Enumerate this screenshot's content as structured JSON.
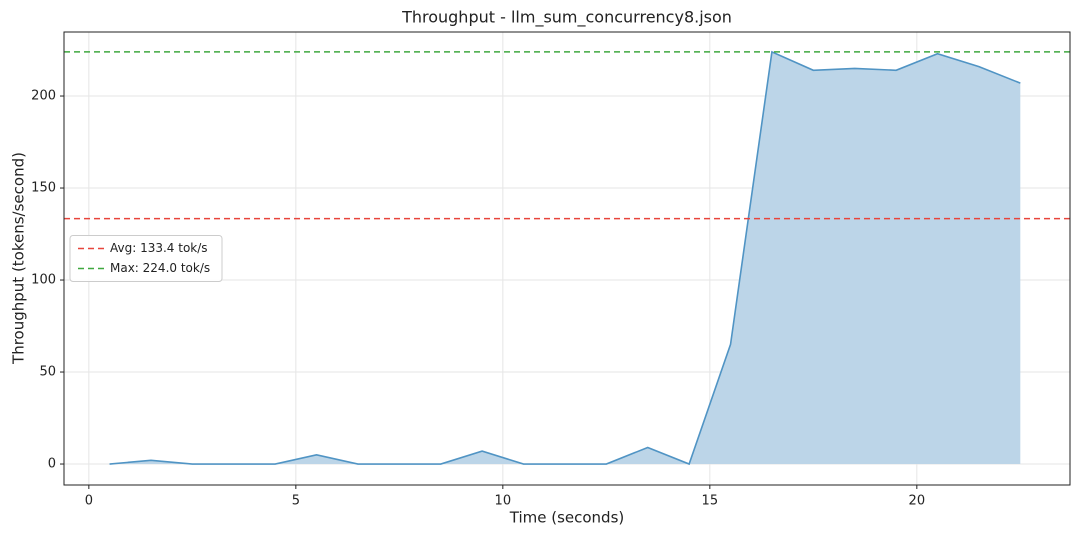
{
  "chart_data": {
    "type": "area",
    "title": "Throughput - llm_sum_concurrency8.json",
    "x_label": "Time (seconds)",
    "y_label": "Throughput (tokens/second)",
    "x": [
      0.5,
      1.5,
      2.5,
      3.5,
      4.5,
      5.5,
      6.5,
      7.5,
      8.5,
      9.5,
      10.5,
      11.5,
      12.5,
      13.5,
      14.5,
      15.5,
      16.5,
      17.5,
      18.5,
      19.5,
      20.5,
      21.5,
      22.5
    ],
    "values": [
      0,
      2,
      0,
      0,
      0,
      5,
      0,
      0,
      0,
      7,
      0,
      0,
      0,
      9,
      0,
      65,
      224,
      214,
      215,
      214,
      223,
      216,
      207
    ],
    "color": "#5094c4",
    "fill_color": "#bcd5e8",
    "reference_lines": [
      {
        "label": "Avg: 133.4 tok/s",
        "value": 133.4,
        "color": "#e8453c"
      },
      {
        "label": "Max: 224.0 tok/s",
        "value": 224.0,
        "color": "#3fa83f"
      }
    ],
    "xlim": [
      -0.6,
      23.7
    ],
    "ylim": [
      -11.4,
      234.8
    ],
    "xticks": [
      0,
      5,
      10,
      15,
      20
    ],
    "yticks": [
      0,
      50,
      100,
      150,
      200
    ],
    "grid": true,
    "legend_position": "center-left"
  }
}
